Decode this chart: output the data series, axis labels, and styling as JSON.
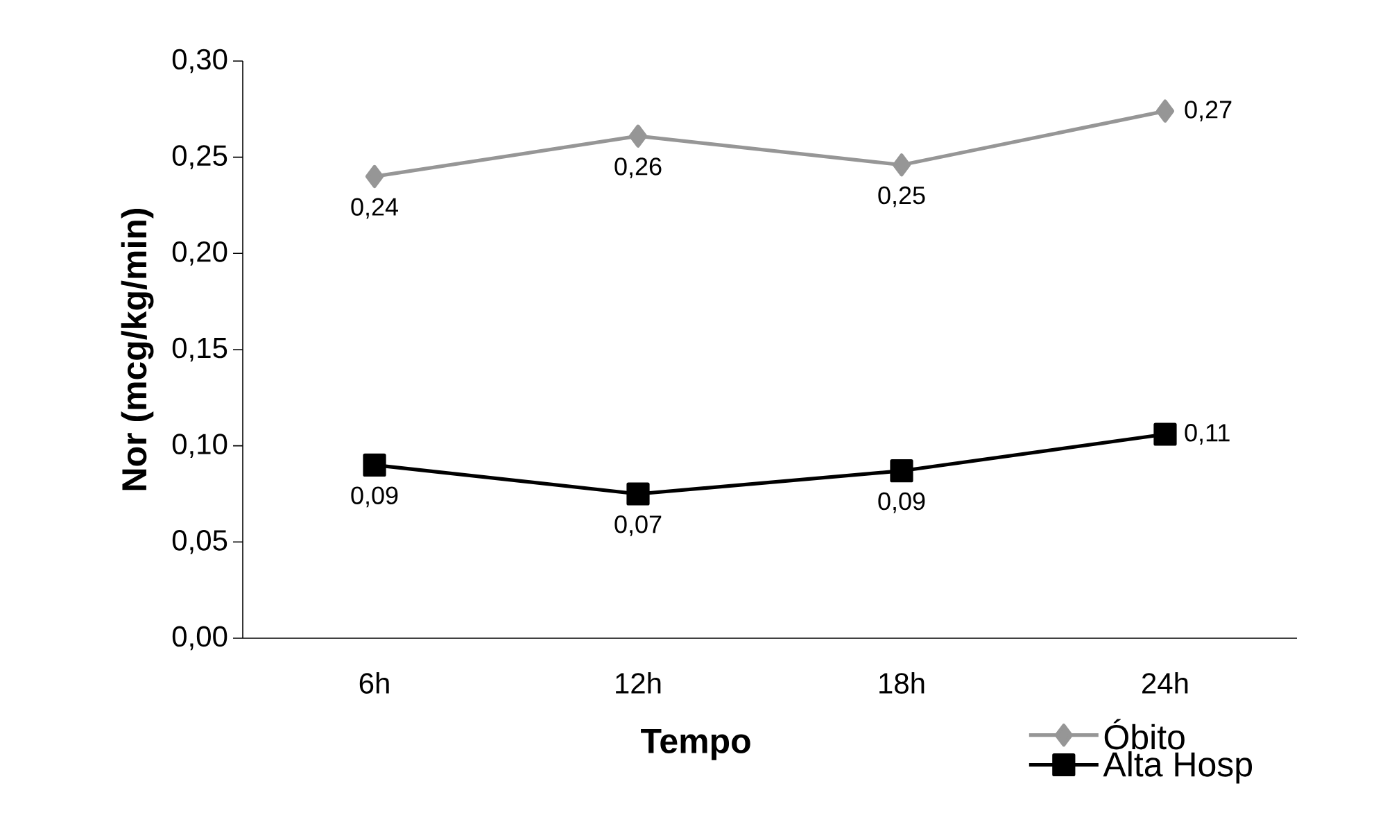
{
  "chart_data": {
    "type": "line",
    "xlabel": "Tempo",
    "ylabel": "Nor (mcg/kg/min)",
    "categories": [
      "6h",
      "12h",
      "18h",
      "24h"
    ],
    "series": [
      {
        "name": "Óbito",
        "color": "#969696",
        "marker": "diamond",
        "values": [
          0.24,
          0.261,
          0.246,
          0.274
        ],
        "value_labels": [
          "0,24",
          "0,26",
          "0,25",
          "0,27"
        ]
      },
      {
        "name": "Alta Hosp",
        "color": "#000000",
        "marker": "square",
        "values": [
          0.09,
          0.075,
          0.087,
          0.106
        ],
        "value_labels": [
          "0,09",
          "0,07",
          "0,09",
          "0,11"
        ]
      }
    ],
    "ylim": [
      0,
      0.3
    ],
    "yticks": [
      {
        "value": 0,
        "label": "0,00"
      },
      {
        "value": 0.05,
        "label": "0,05"
      },
      {
        "value": 0.1,
        "label": "0,10"
      },
      {
        "value": 0.15,
        "label": "0,15"
      },
      {
        "value": 0.2,
        "label": "0,20"
      },
      {
        "value": 0.25,
        "label": "0,25"
      },
      {
        "value": 0.3,
        "label": "0,30"
      }
    ],
    "grid": false,
    "legend": "bottom right",
    "line_style": "solid"
  }
}
